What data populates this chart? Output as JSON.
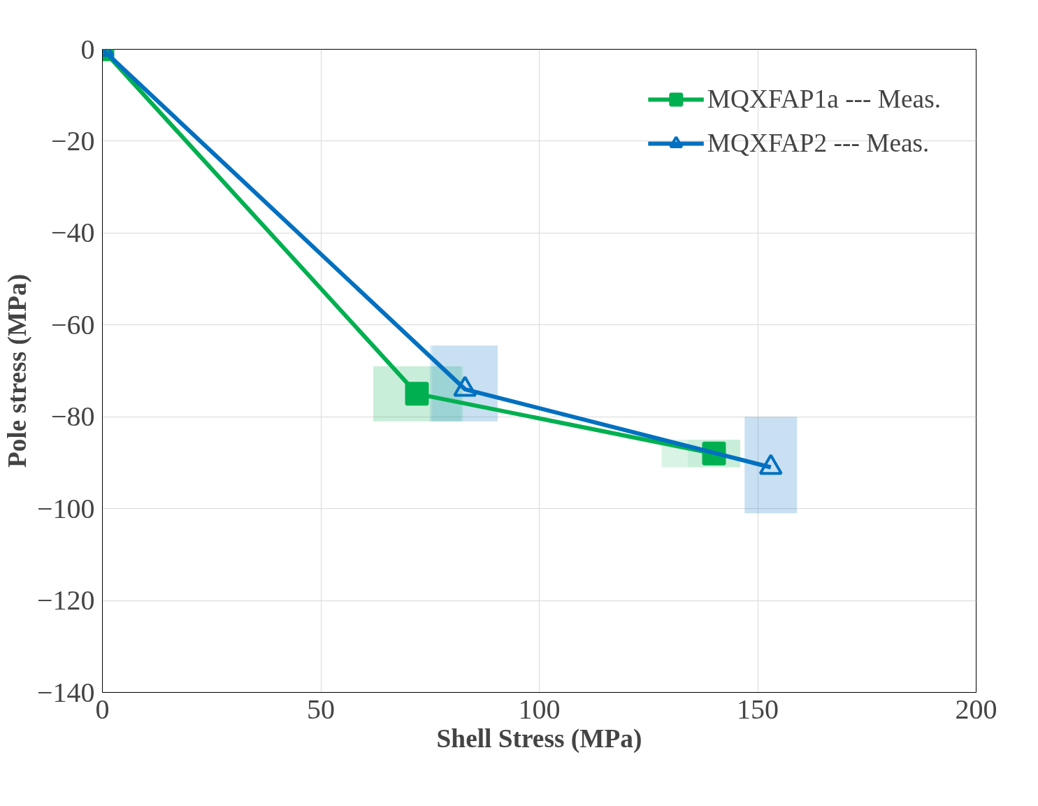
{
  "chart_data": {
    "type": "line",
    "xlabel": "Shell Stress (MPa)",
    "ylabel": "Pole stress (MPa)",
    "xlim": [
      0,
      200
    ],
    "xticks": [
      0,
      50,
      100,
      150,
      200
    ],
    "ylim": [
      -140,
      0
    ],
    "yticks": [
      -140,
      -120,
      -100,
      -80,
      -60,
      -40,
      -20,
      0
    ],
    "grid": true,
    "legend": "top right",
    "series": [
      {
        "name": "MQXFAP1a --- Meas.",
        "color": "#00b050",
        "marker": "square",
        "x": [
          0,
          72,
          140
        ],
        "values": [
          0,
          -75,
          -88
        ],
        "xerrors": [
          null,
          [
            62,
            82.5
          ],
          [
            128,
            146
          ]
        ],
        "errors": [
          null,
          [
            -81,
            -69
          ],
          [
            -91,
            -85
          ]
        ]
      },
      {
        "name": "MQXFAP2 --- Meas.",
        "color": "#0070c0",
        "marker": "triangle",
        "x": [
          0,
          83,
          153
        ],
        "values": [
          0,
          -74,
          -91
        ],
        "xerrors": [
          null,
          [
            75,
            90.5
          ],
          [
            147,
            159
          ]
        ],
        "errors": [
          null,
          [
            -81,
            -64.5
          ],
          [
            -101,
            -80
          ]
        ]
      }
    ]
  }
}
